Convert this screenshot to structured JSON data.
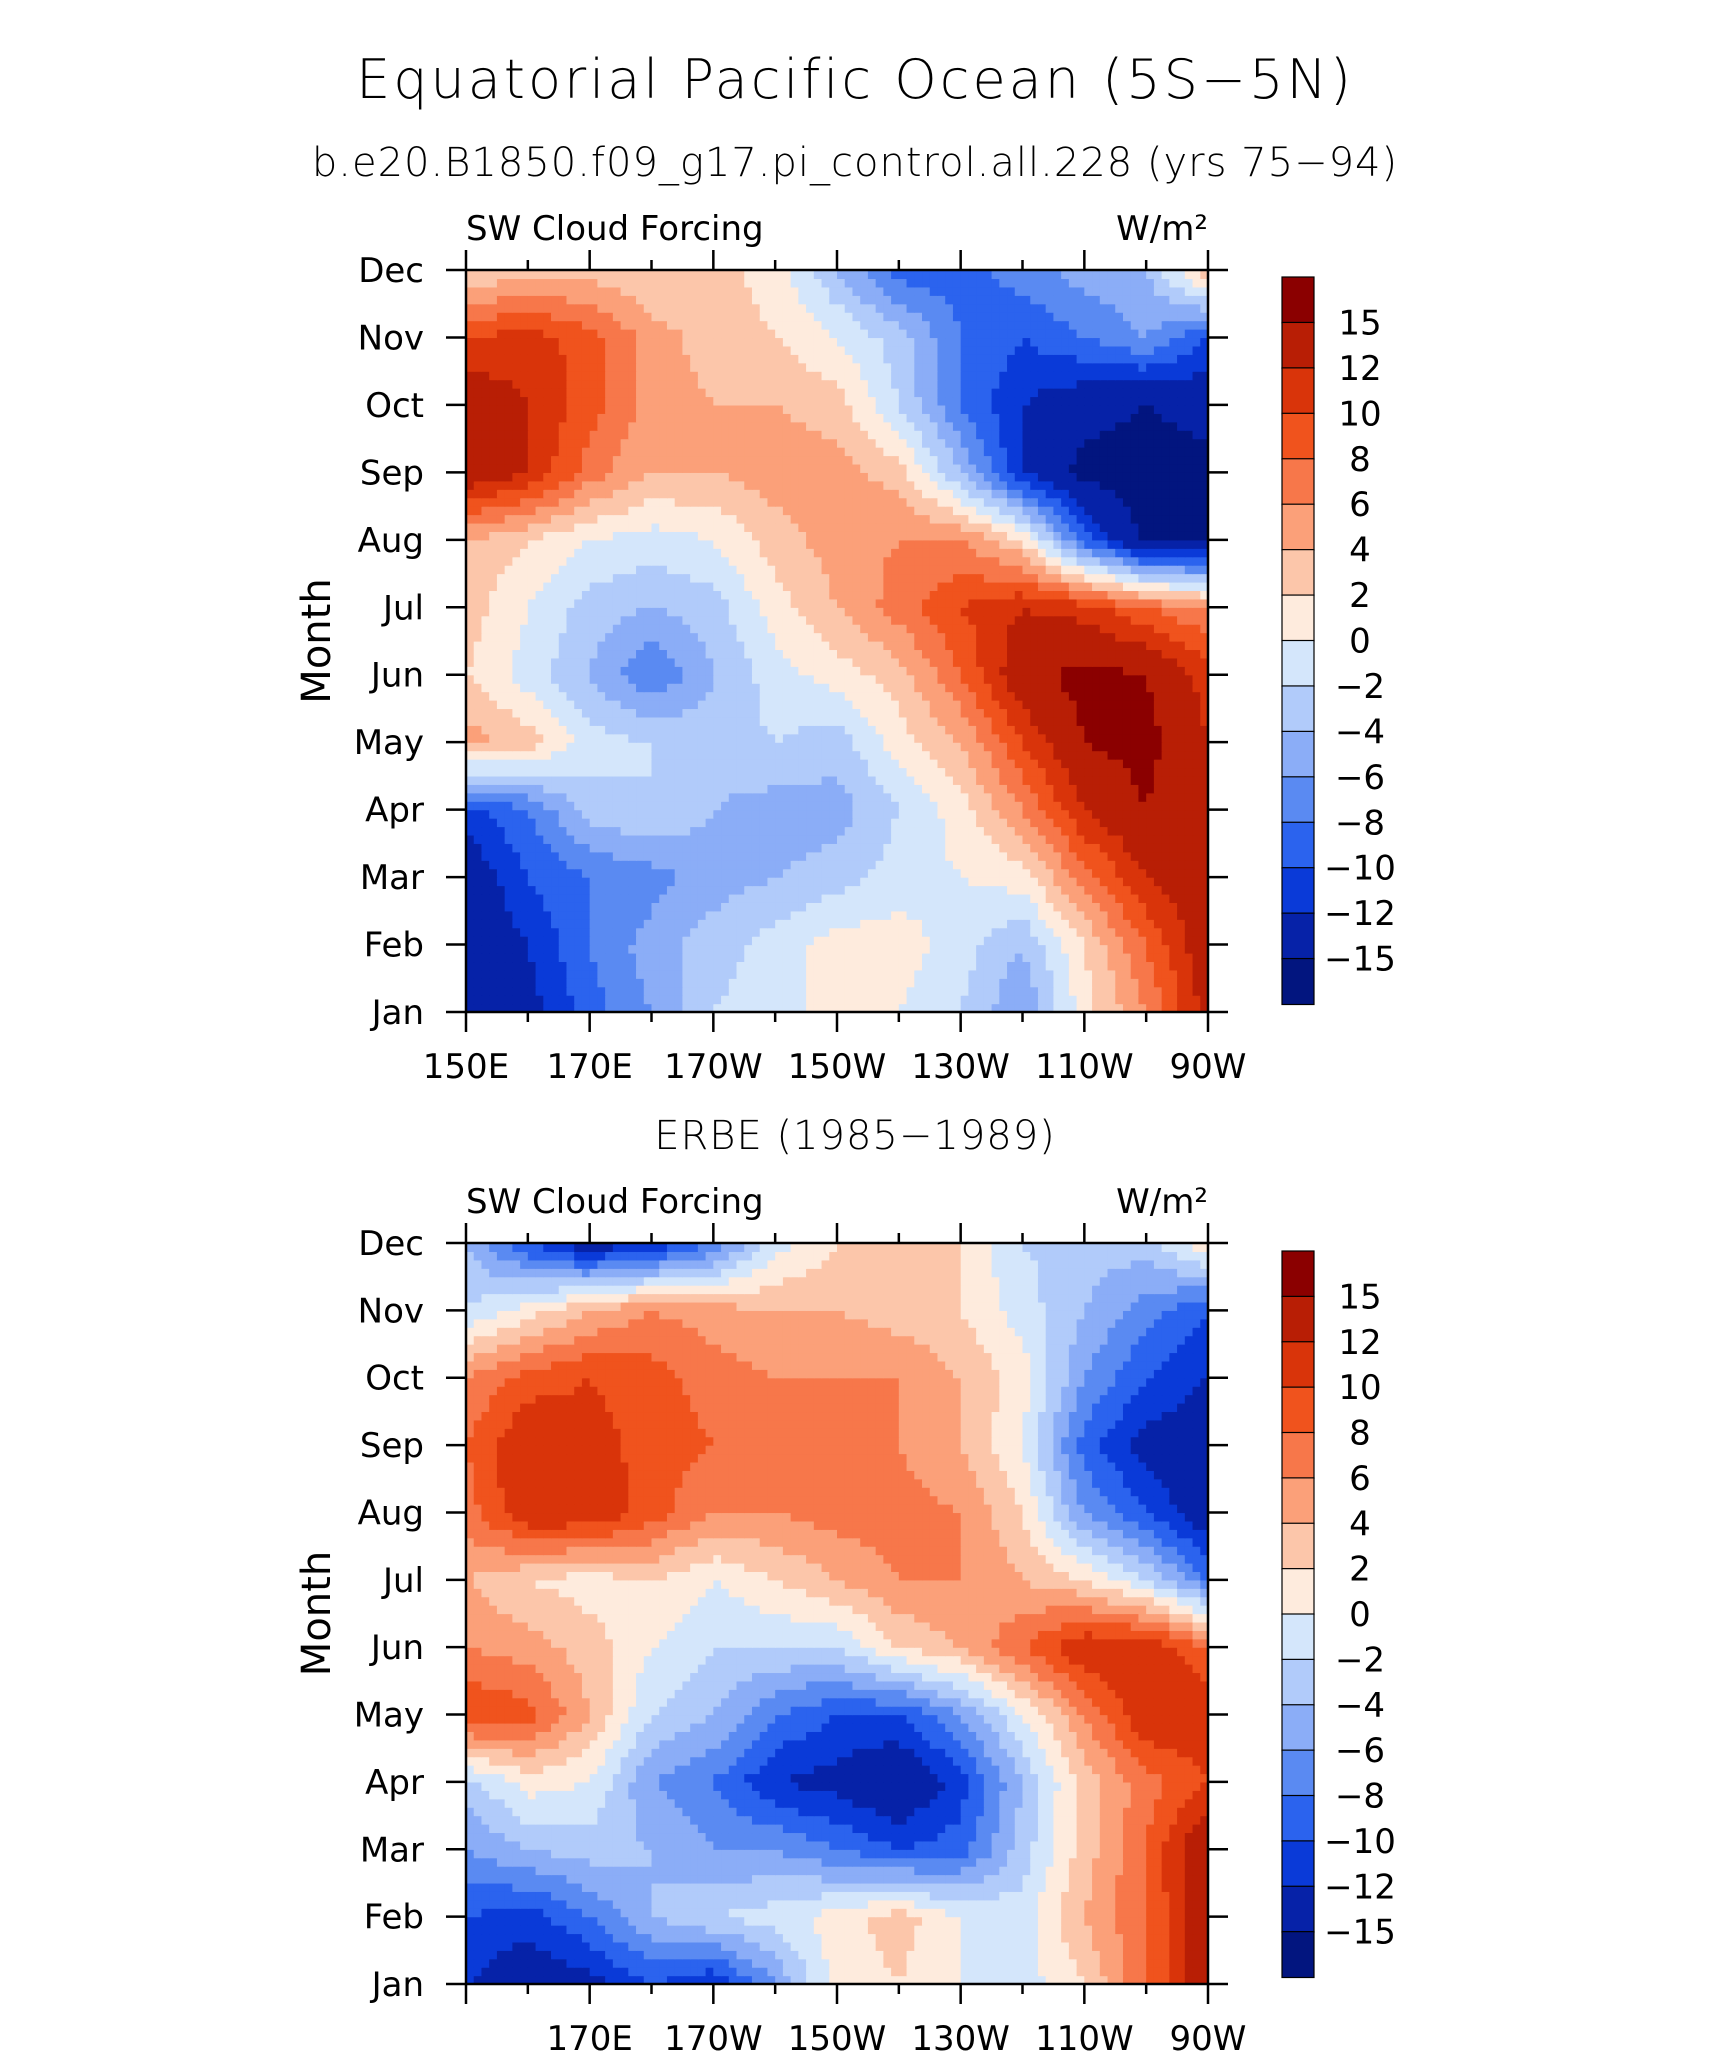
{
  "figure": {
    "title": "Equatorial Pacific Ocean (5S−5N)",
    "subtitle": "b.e20.B1850.f09_g17.pi_control.all.228 (yrs 75−94)",
    "panel2_title": "ERBE (1985−1989)"
  },
  "colorbar": {
    "levels": [
      "15",
      "12",
      "10",
      "8",
      "6",
      "4",
      "2",
      "0",
      "−2",
      "−4",
      "−6",
      "−8",
      "−10",
      "−12",
      "−15"
    ],
    "level_values": [
      15,
      12,
      10,
      8,
      6,
      4,
      2,
      0,
      -2,
      -4,
      -6,
      -8,
      -10,
      -12,
      -15
    ],
    "colors": [
      "#8b0000",
      "#b81e05",
      "#d9340a",
      "#f0531d",
      "#f7774a",
      "#fba079",
      "#fcc6aa",
      "#feebdd",
      "#d4e6fb",
      "#b1cbfa",
      "#8badf7",
      "#5a8af2",
      "#2b63ee",
      "#0a3ad8",
      "#0622a8",
      "#02157f"
    ]
  },
  "chart_data": [
    {
      "type": "heatmap",
      "title": "",
      "left_string": "SW Cloud Forcing",
      "right_string": "W/m²",
      "ylabel": "Month",
      "xlabel": "",
      "x_ticks": [
        "150E",
        "170E",
        "170W",
        "150W",
        "130W",
        "110W",
        "90W"
      ],
      "y_ticks": [
        "Jan",
        "Feb",
        "Mar",
        "Apr",
        "May",
        "Jun",
        "Jul",
        "Aug",
        "Sep",
        "Oct",
        "Nov",
        "Dec"
      ],
      "x_range": [
        150,
        270
      ],
      "y_range": [
        "Jan",
        "Dec"
      ],
      "x": [
        150,
        160,
        170,
        180,
        190,
        200,
        210,
        220,
        230,
        240,
        250,
        260,
        270
      ],
      "y": [
        "Jan",
        "Feb",
        "Mar",
        "Apr",
        "May",
        "Jun",
        "Jul",
        "Aug",
        "Sep",
        "Oct",
        "Nov",
        "Dec"
      ],
      "z": [
        [
          -15,
          -13,
          -9,
          -6,
          -2,
          -1,
          1,
          0,
          -2,
          -6,
          1,
          6,
          13
        ],
        [
          -15,
          -12,
          -8,
          -5,
          -3,
          -1,
          1,
          1,
          -1,
          -4,
          2,
          8,
          14
        ],
        [
          -14,
          -10,
          -8,
          -7,
          -5,
          -4,
          -3,
          -1,
          0,
          1,
          7,
          12,
          14
        ],
        [
          -11,
          -8,
          -3,
          -2,
          -4,
          -5,
          -5,
          -2,
          1,
          6,
          12,
          15,
          12
        ],
        [
          5,
          3,
          -1,
          -2,
          -3,
          -2,
          -3,
          1,
          4,
          10,
          15,
          16,
          12
        ],
        [
          2,
          -1,
          -4,
          -8,
          -4,
          -1,
          1,
          3,
          8,
          14,
          16,
          15,
          11
        ],
        [
          3,
          0,
          -3,
          -4,
          -3,
          1,
          4,
          7,
          10,
          12,
          11,
          8,
          6
        ],
        [
          4,
          2,
          0,
          -1,
          0,
          3,
          5,
          6,
          6,
          2,
          -9,
          -16,
          -16
        ],
        [
          14,
          12,
          7,
          4,
          4,
          5,
          5,
          3,
          -4,
          -12,
          -16,
          -16,
          -16
        ],
        [
          14,
          12,
          9,
          5,
          4,
          4,
          3,
          -2,
          -8,
          -12,
          -14,
          -15,
          -14
        ],
        [
          10,
          11,
          9,
          5,
          3,
          2,
          0,
          -3,
          -8,
          -10,
          -8,
          -6,
          -10
        ],
        [
          2,
          3,
          3,
          2,
          3,
          1,
          -4,
          -9,
          -9,
          -7,
          -5,
          -4,
          4
        ]
      ]
    },
    {
      "type": "heatmap",
      "title": "ERBE (1985−1989)",
      "left_string": "SW Cloud Forcing",
      "right_string": "W/m²",
      "ylabel": "Month",
      "xlabel": "",
      "x_ticks": [
        "170E",
        "170W",
        "150W",
        "130W",
        "110W",
        "90W"
      ],
      "y_ticks": [
        "Jan",
        "Feb",
        "Mar",
        "Apr",
        "May",
        "Jun",
        "Jul",
        "Aug",
        "Sep",
        "Oct",
        "Nov",
        "Dec"
      ],
      "x_range": [
        150,
        270
      ],
      "y_range": [
        "Jan",
        "Dec"
      ],
      "x": [
        150,
        160,
        170,
        180,
        190,
        200,
        210,
        220,
        230,
        240,
        250,
        260,
        270
      ],
      "y": [
        "Jan",
        "Feb",
        "Mar",
        "Apr",
        "May",
        "Jun",
        "Jul",
        "Aug",
        "Sep",
        "Oct",
        "Nov",
        "Dec"
      ],
      "z": [
        [
          -12,
          -14,
          -13,
          -10,
          -12,
          -6,
          1,
          2,
          0,
          -1,
          2,
          8,
          14
        ],
        [
          -10,
          -11,
          -8,
          -4,
          -2,
          -1,
          1,
          3,
          0,
          -1,
          4,
          8,
          14
        ],
        [
          -6,
          -4,
          -3,
          -4,
          -6,
          -6,
          -8,
          -10,
          -9,
          -3,
          3,
          8,
          15
        ],
        [
          -3,
          1,
          0,
          -6,
          -8,
          -12,
          -13,
          -15,
          -11,
          -4,
          3,
          7,
          10
        ],
        [
          10,
          9,
          4,
          -2,
          -4,
          -8,
          -10,
          -10,
          -6,
          0,
          6,
          12,
          12
        ],
        [
          6,
          5,
          3,
          0,
          -2,
          -2,
          -2,
          2,
          4,
          8,
          12,
          12,
          8
        ],
        [
          4,
          2,
          1,
          2,
          0,
          2,
          4,
          6,
          6,
          4,
          2,
          -2,
          -8
        ],
        [
          7,
          12,
          12,
          9,
          6,
          6,
          7,
          7,
          6,
          2,
          -6,
          -10,
          -14
        ],
        [
          8,
          12,
          11,
          9,
          8,
          8,
          7,
          6,
          4,
          0,
          -9,
          -13,
          -14
        ],
        [
          6,
          9,
          10,
          9,
          7,
          6,
          6,
          6,
          4,
          1,
          -6,
          -10,
          -12
        ],
        [
          -2,
          1,
          4,
          6,
          5,
          4,
          4,
          3,
          2,
          -1,
          -4,
          -7,
          -10
        ],
        [
          -4,
          -10,
          -14,
          -12,
          -8,
          -1,
          2,
          2,
          2,
          -2,
          -3,
          -3,
          2
        ]
      ]
    }
  ]
}
